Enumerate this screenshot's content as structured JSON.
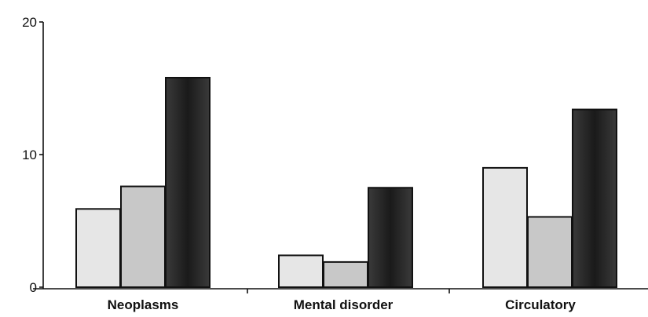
{
  "chart_data": {
    "type": "bar",
    "categories": [
      "Neoplasms",
      "Mental disorder",
      "Circulatory"
    ],
    "series": [
      {
        "values": [
          5.9,
          2.4,
          9.0
        ],
        "color": "#e6e6e6"
      },
      {
        "values": [
          7.6,
          1.9,
          5.3
        ],
        "color": "#c8c8c8"
      },
      {
        "values": [
          15.8,
          7.5,
          13.4
        ],
        "color": "#2b2b2b"
      }
    ],
    "yticks": [
      "0",
      "10",
      "20"
    ],
    "ylim": [
      0,
      20
    ],
    "grid": false,
    "legend": "none"
  }
}
